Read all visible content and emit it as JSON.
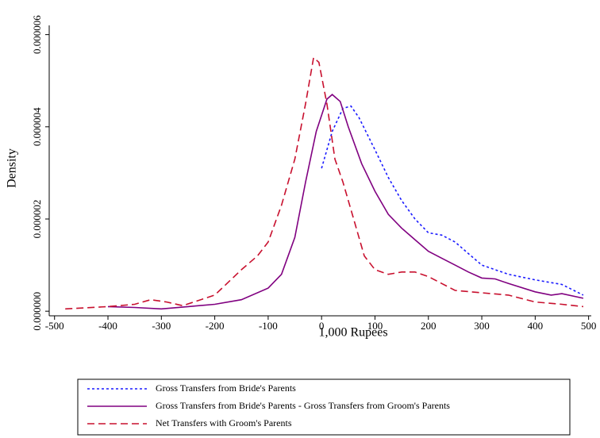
{
  "chart_data": {
    "type": "line",
    "xlabel": "1,000 Rupees",
    "ylabel": "Density",
    "xlim": [
      -510,
      505
    ],
    "ylim": [
      -1e-07,
      6.2e-06
    ],
    "xticks": [
      -500,
      -400,
      -300,
      -200,
      -100,
      0,
      100,
      200,
      300,
      400,
      500
    ],
    "yticks": [
      {
        "value": 0,
        "label": "0.000000"
      },
      {
        "value": 2e-06,
        "label": "0.000002"
      },
      {
        "value": 4e-06,
        "label": "0.000004"
      },
      {
        "value": 6e-06,
        "label": "0.000006"
      }
    ],
    "grid": false,
    "legend": "bottom",
    "series": [
      {
        "name": "Gross Transfers from Bride's Parents",
        "color": "#1a1aff",
        "linestyle": "dotted",
        "x": [
          0,
          20,
          40,
          55,
          70,
          100,
          125,
          150,
          175,
          200,
          225,
          250,
          275,
          300,
          350,
          400,
          450,
          490
        ],
        "values": [
          3.1e-06,
          3.9e-06,
          4.4e-06,
          4.45e-06,
          4.2e-06,
          3.5e-06,
          2.9e-06,
          2.4e-06,
          2e-06,
          1.7e-06,
          1.65e-06,
          1.5e-06,
          1.25e-06,
          1e-06,
          8e-07,
          6.8e-07,
          5.8e-07,
          3.5e-07
        ]
      },
      {
        "name": "Gross Transfers from Bride's Parents - Gross Transfers from Groom's Parents",
        "color": "#800080",
        "linestyle": "solid",
        "x": [
          -400,
          -350,
          -300,
          -250,
          -200,
          -150,
          -100,
          -75,
          -50,
          -30,
          -10,
          10,
          20,
          35,
          50,
          75,
          100,
          125,
          150,
          175,
          200,
          225,
          250,
          275,
          300,
          325,
          350,
          400,
          430,
          450,
          490
        ],
        "values": [
          1e-07,
          8e-08,
          5e-08,
          1e-07,
          1.5e-07,
          2.5e-07,
          5e-07,
          8e-07,
          1.6e-06,
          2.8e-06,
          3.9e-06,
          4.6e-06,
          4.7e-06,
          4.55e-06,
          4e-06,
          3.2e-06,
          2.6e-06,
          2.1e-06,
          1.8e-06,
          1.55e-06,
          1.3e-06,
          1.15e-06,
          1e-06,
          8.5e-07,
          7.2e-07,
          7e-07,
          6e-07,
          4.2e-07,
          3.5e-07,
          3.8e-07,
          2.8e-07
        ]
      },
      {
        "name": "Net Transfers with Groom's Parents",
        "color": "#c8102e",
        "linestyle": "dashed",
        "x": [
          -480,
          -400,
          -350,
          -320,
          -290,
          -260,
          -200,
          -150,
          -120,
          -100,
          -75,
          -50,
          -30,
          -15,
          -5,
          10,
          25,
          40,
          60,
          80,
          100,
          125,
          150,
          175,
          200,
          225,
          250,
          300,
          350,
          400,
          450,
          490
        ],
        "values": [
          5e-08,
          1e-07,
          1.5e-07,
          2.5e-07,
          2e-07,
          1.2e-07,
          3.5e-07,
          9e-07,
          1.2e-06,
          1.5e-06,
          2.3e-06,
          3.3e-06,
          4.5e-06,
          5.5e-06,
          5.4e-06,
          4.5e-06,
          3.3e-06,
          2.8e-06,
          2e-06,
          1.2e-06,
          9e-07,
          8e-07,
          8.5e-07,
          8.5e-07,
          7.5e-07,
          6e-07,
          4.5e-07,
          4e-07,
          3.5e-07,
          2e-07,
          1.5e-07,
          1e-07
        ]
      }
    ]
  }
}
